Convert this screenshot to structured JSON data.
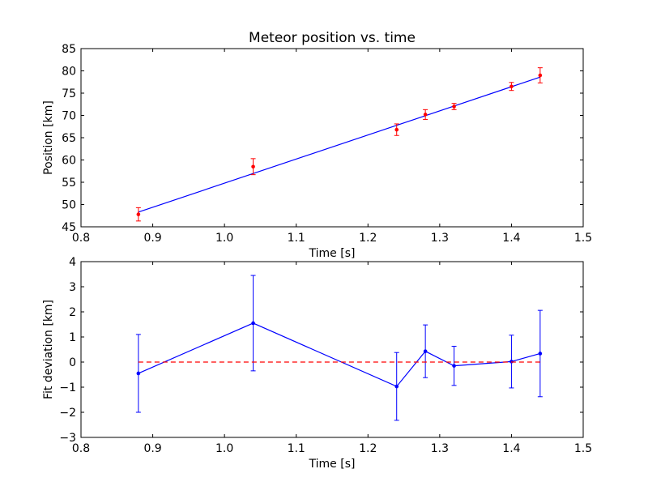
{
  "chart_data": [
    {
      "type": "line",
      "title": "Meteor position vs. time",
      "xlabel": "Time [s]",
      "ylabel": "Position [km]",
      "xlim": [
        0.8,
        1.5
      ],
      "ylim": [
        45,
        85
      ],
      "xticks": [
        "0.8",
        "0.9",
        "1.0",
        "1.1",
        "1.2",
        "1.3",
        "1.4",
        "1.5"
      ],
      "yticks": [
        "45",
        "50",
        "55",
        "60",
        "65",
        "70",
        "75",
        "80",
        "85"
      ],
      "grid": false,
      "series": [
        {
          "kind": "fit-line",
          "color": "#0000ff",
          "x": [
            0.88,
            1.44
          ],
          "y": [
            48.3,
            78.6
          ]
        },
        {
          "kind": "errorbar-points",
          "color": "#ff0000",
          "x": [
            0.88,
            1.04,
            1.24,
            1.28,
            1.32,
            1.4,
            1.44
          ],
          "y": [
            47.8,
            58.5,
            66.8,
            70.2,
            72.0,
            76.5,
            79.0
          ],
          "err": [
            1.5,
            1.8,
            1.3,
            1.1,
            0.7,
            0.9,
            1.7
          ]
        }
      ]
    },
    {
      "type": "line",
      "xlabel": "Time [s]",
      "ylabel": "Fit deviation [km]",
      "xlim": [
        0.8,
        1.5
      ],
      "ylim": [
        -3,
        4
      ],
      "xticks": [
        "0.8",
        "0.9",
        "1.0",
        "1.1",
        "1.2",
        "1.3",
        "1.4",
        "1.5"
      ],
      "yticks": [
        "−3",
        "−2",
        "−1",
        "0",
        "1",
        "2",
        "3",
        "4"
      ],
      "grid": false,
      "series": [
        {
          "kind": "errorbar-line",
          "color": "#0000ff",
          "x": [
            0.88,
            1.04,
            1.24,
            1.28,
            1.32,
            1.4,
            1.44
          ],
          "y": [
            -0.45,
            1.55,
            -0.97,
            0.43,
            -0.15,
            0.02,
            0.34
          ],
          "err": [
            1.55,
            1.9,
            1.35,
            1.05,
            0.78,
            1.05,
            1.72
          ]
        },
        {
          "kind": "zero-line",
          "color": "#ff0000",
          "dashed": true,
          "x": [
            0.88,
            1.44
          ],
          "y": [
            0,
            0
          ]
        }
      ]
    }
  ]
}
